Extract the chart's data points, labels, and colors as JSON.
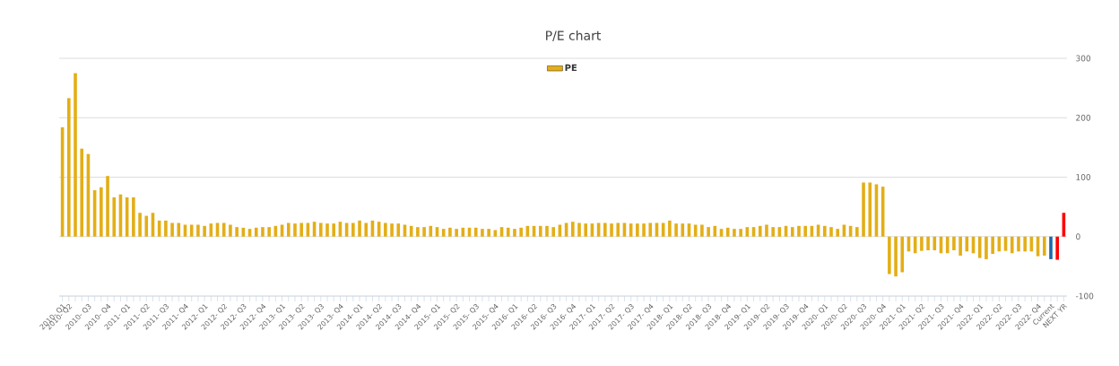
{
  "chart_data": {
    "type": "bar",
    "title": "P/E chart",
    "categories": [
      "2010- Q1",
      "2010- Q2",
      null,
      null,
      "2010- Q3",
      null,
      null,
      "2010- Q4",
      null,
      null,
      "2011- Q1",
      null,
      null,
      "2011- Q2",
      null,
      null,
      "2011- Q3",
      null,
      null,
      "2011- Q4",
      null,
      null,
      "2012- Q1",
      null,
      null,
      "2012- Q2",
      null,
      null,
      "2012- Q3",
      null,
      null,
      "2012- Q4",
      null,
      null,
      "2013- Q1",
      null,
      null,
      "2013- Q2",
      null,
      null,
      "2013- Q3",
      null,
      null,
      "2013- Q4",
      null,
      null,
      "2014- Q1",
      null,
      null,
      "2014- Q2",
      null,
      null,
      "2014- Q3",
      null,
      null,
      "2014- Q4",
      null,
      null,
      "2015- Q1",
      null,
      null,
      "2015- Q2",
      null,
      null,
      "2015- Q3",
      null,
      null,
      "2015- Q4",
      null,
      null,
      "2016- Q1",
      null,
      null,
      "2016- Q2",
      null,
      null,
      "2016- Q3",
      null,
      null,
      "2016- Q4",
      null,
      null,
      "2017- Q1",
      null,
      null,
      "2017- Q2",
      null,
      null,
      "2017- Q3",
      null,
      null,
      "2017- Q4",
      null,
      null,
      "2018- Q1",
      null,
      null,
      "2018- Q2",
      null,
      null,
      "2018- Q3",
      null,
      null,
      "2018- Q4",
      null,
      null,
      "2019- Q1",
      null,
      null,
      "2019- Q2",
      null,
      null,
      "2019- Q3",
      null,
      null,
      "2019- Q4",
      null,
      null,
      "2020- Q1",
      null,
      null,
      "2020- Q2",
      null,
      null,
      "2020- Q3",
      null,
      null,
      "2020- Q4",
      null,
      null,
      "2021- Q1",
      null,
      null,
      "2021- Q2",
      null,
      null,
      "2021- Q3",
      null,
      null,
      "2021- Q4",
      null,
      null,
      "2022- Q1",
      null,
      null,
      "2022- Q2",
      null,
      null,
      "2022- Q3",
      null,
      null,
      "2022- Q4",
      null,
      "Current",
      null,
      "NEXT YR"
    ],
    "series": [
      {
        "name": "PE",
        "color": "#e3ae17",
        "values": [
          184,
          233,
          275,
          148,
          139,
          78,
          83,
          102,
          66,
          71,
          66,
          66,
          40,
          35,
          40,
          27,
          27,
          23,
          23,
          20,
          20,
          20,
          18,
          22,
          23,
          23,
          20,
          16,
          15,
          13,
          15,
          16,
          16,
          18,
          20,
          23,
          22,
          23,
          23,
          25,
          23,
          22,
          22,
          25,
          23,
          23,
          27,
          23,
          27,
          25,
          23,
          22,
          22,
          20,
          18,
          16,
          16,
          18,
          16,
          13,
          15,
          13,
          15,
          15,
          15,
          13,
          13,
          11,
          16,
          15,
          13,
          15,
          18,
          18,
          18,
          18,
          16,
          20,
          23,
          25,
          23,
          22,
          22,
          23,
          23,
          22,
          23,
          23,
          22,
          22,
          22,
          23,
          23,
          23,
          27,
          22,
          22,
          22,
          20,
          20,
          16,
          18,
          13,
          15,
          13,
          13,
          16,
          16,
          18,
          20,
          16,
          16,
          18,
          16,
          18,
          18,
          18,
          20,
          18,
          16,
          13,
          20,
          18,
          16,
          91,
          91,
          88,
          84,
          -63,
          -67,
          -60,
          -25,
          -28,
          -24,
          -23,
          -23,
          -28,
          -28,
          -23,
          -32,
          -25,
          -28,
          -36,
          -38,
          -29,
          -25,
          -24,
          -28,
          -25,
          -25,
          -25,
          -33,
          -32,
          -38,
          -39,
          40
        ],
        "colors": [
          "#e3ae17",
          "#e3ae17",
          "#e3ae17",
          "#e3ae17",
          "#e3ae17",
          "#e3ae17",
          "#e3ae17",
          "#e3ae17",
          "#e3ae17",
          "#e3ae17",
          "#e3ae17",
          "#e3ae17",
          "#e3ae17",
          "#e3ae17",
          "#e3ae17",
          "#e3ae17",
          "#e3ae17",
          "#e3ae17",
          "#e3ae17",
          "#e3ae17",
          "#e3ae17",
          "#e3ae17",
          "#e3ae17",
          "#e3ae17",
          "#e3ae17",
          "#e3ae17",
          "#e3ae17",
          "#e3ae17",
          "#e3ae17",
          "#e3ae17",
          "#e3ae17",
          "#e3ae17",
          "#e3ae17",
          "#e3ae17",
          "#e3ae17",
          "#e3ae17",
          "#e3ae17",
          "#e3ae17",
          "#e3ae17",
          "#e3ae17",
          "#e3ae17",
          "#e3ae17",
          "#e3ae17",
          "#e3ae17",
          "#e3ae17",
          "#e3ae17",
          "#e3ae17",
          "#e3ae17",
          "#e3ae17",
          "#e3ae17",
          "#e3ae17",
          "#e3ae17",
          "#e3ae17",
          "#e3ae17",
          "#e3ae17",
          "#e3ae17",
          "#e3ae17",
          "#e3ae17",
          "#e3ae17",
          "#e3ae17",
          "#e3ae17",
          "#e3ae17",
          "#e3ae17",
          "#e3ae17",
          "#e3ae17",
          "#e3ae17",
          "#e3ae17",
          "#e3ae17",
          "#e3ae17",
          "#e3ae17",
          "#e3ae17",
          "#e3ae17",
          "#e3ae17",
          "#e3ae17",
          "#e3ae17",
          "#e3ae17",
          "#e3ae17",
          "#e3ae17",
          "#e3ae17",
          "#e3ae17",
          "#e3ae17",
          "#e3ae17",
          "#e3ae17",
          "#e3ae17",
          "#e3ae17",
          "#e3ae17",
          "#e3ae17",
          "#e3ae17",
          "#e3ae17",
          "#e3ae17",
          "#e3ae17",
          "#e3ae17",
          "#e3ae17",
          "#e3ae17",
          "#e3ae17",
          "#e3ae17",
          "#e3ae17",
          "#e3ae17",
          "#e3ae17",
          "#e3ae17",
          "#e3ae17",
          "#e3ae17",
          "#e3ae17",
          "#e3ae17",
          "#e3ae17",
          "#e3ae17",
          "#e3ae17",
          "#e3ae17",
          "#e3ae17",
          "#e3ae17",
          "#e3ae17",
          "#e3ae17",
          "#e3ae17",
          "#e3ae17",
          "#e3ae17",
          "#e3ae17",
          "#e3ae17",
          "#e3ae17",
          "#e3ae17",
          "#e3ae17",
          "#e3ae17",
          "#e3ae17",
          "#e3ae17",
          "#e3ae17",
          "#e3ae17",
          "#e3ae17",
          "#e3ae17",
          "#e3ae17",
          "#e3ae17",
          "#e3ae17",
          "#e3ae17",
          "#e3ae17",
          "#e3ae17",
          "#e3ae17",
          "#e3ae17",
          "#e3ae17",
          "#e3ae17",
          "#e3ae17",
          "#e3ae17",
          "#e3ae17",
          "#e3ae17",
          "#e3ae17",
          "#e3ae17",
          "#e3ae17",
          "#e3ae17",
          "#e3ae17",
          "#e3ae17",
          "#e3ae17",
          "#e3ae17",
          "#e3ae17",
          "#e3ae17",
          "#e3ae17",
          "#e3ae17",
          "#1a6aa8",
          "#ff0000",
          "#ff0000"
        ]
      }
    ],
    "ylim": [
      -100,
      300
    ],
    "yticks": [
      -100,
      0,
      100,
      200,
      300
    ],
    "grid": "y",
    "legend": "top"
  }
}
